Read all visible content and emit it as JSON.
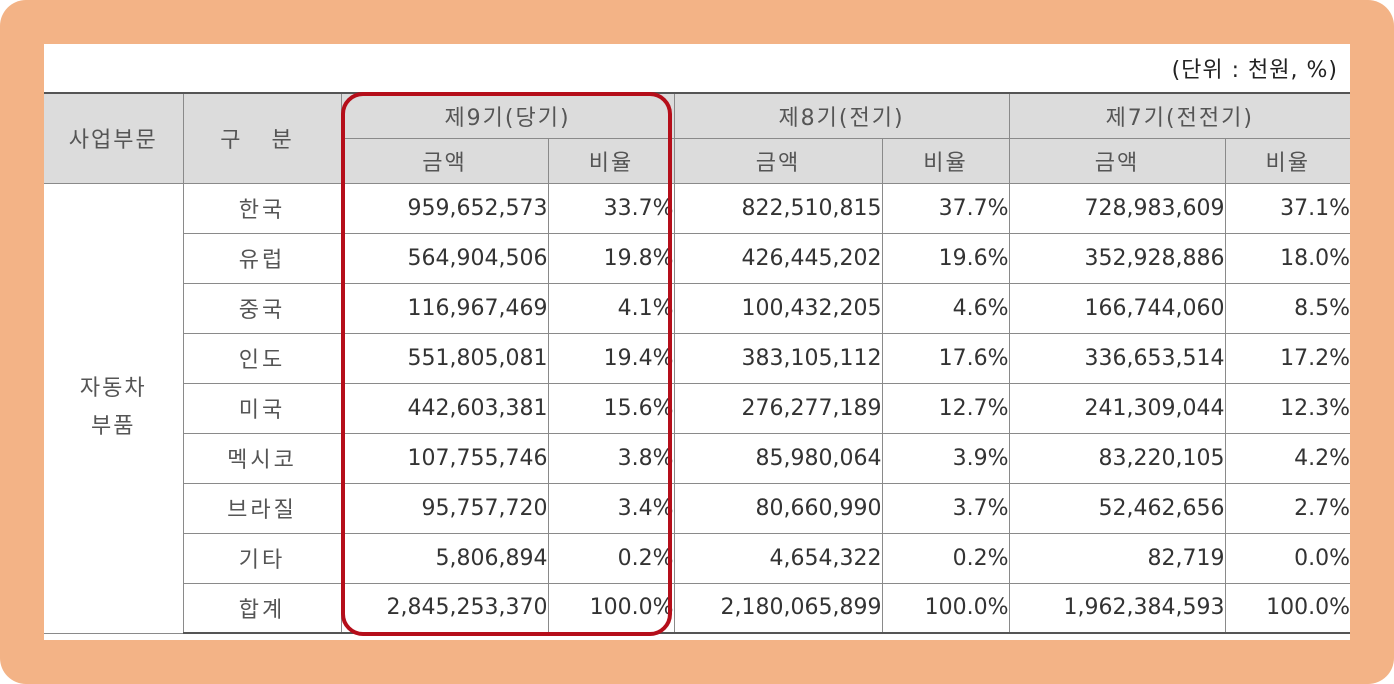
{
  "unit_note": "(단위 : 천원, %)",
  "headers": {
    "segment": "사업부문",
    "category": "구 분",
    "periods": [
      "제9기(당기)",
      "제8기(전기)",
      "제7기(전전기)"
    ],
    "amount": "금액",
    "ratio": "비율"
  },
  "segment_label": "자동차\n부품",
  "rows": [
    {
      "region": "한국",
      "p9_amount": "959,652,573",
      "p9_ratio": "33.7%",
      "p8_amount": "822,510,815",
      "p8_ratio": "37.7%",
      "p7_amount": "728,983,609",
      "p7_ratio": "37.1%"
    },
    {
      "region": "유럽",
      "p9_amount": "564,904,506",
      "p9_ratio": "19.8%",
      "p8_amount": "426,445,202",
      "p8_ratio": "19.6%",
      "p7_amount": "352,928,886",
      "p7_ratio": "18.0%"
    },
    {
      "region": "중국",
      "p9_amount": "116,967,469",
      "p9_ratio": "4.1%",
      "p8_amount": "100,432,205",
      "p8_ratio": "4.6%",
      "p7_amount": "166,744,060",
      "p7_ratio": "8.5%"
    },
    {
      "region": "인도",
      "p9_amount": "551,805,081",
      "p9_ratio": "19.4%",
      "p8_amount": "383,105,112",
      "p8_ratio": "17.6%",
      "p7_amount": "336,653,514",
      "p7_ratio": "17.2%"
    },
    {
      "region": "미국",
      "p9_amount": "442,603,381",
      "p9_ratio": "15.6%",
      "p8_amount": "276,277,189",
      "p8_ratio": "12.7%",
      "p7_amount": "241,309,044",
      "p7_ratio": "12.3%"
    },
    {
      "region": "멕시코",
      "p9_amount": "107,755,746",
      "p9_ratio": "3.8%",
      "p8_amount": "85,980,064",
      "p8_ratio": "3.9%",
      "p7_amount": "83,220,105",
      "p7_ratio": "4.2%"
    },
    {
      "region": "브라질",
      "p9_amount": "95,757,720",
      "p9_ratio": "3.4%",
      "p8_amount": "80,660,990",
      "p8_ratio": "3.7%",
      "p7_amount": "52,462,656",
      "p7_ratio": "2.7%"
    },
    {
      "region": "기타",
      "p9_amount": "5,806,894",
      "p9_ratio": "0.2%",
      "p8_amount": "4,654,322",
      "p8_ratio": "0.2%",
      "p7_amount": "82,719",
      "p7_ratio": "0.0%"
    },
    {
      "region": "합계",
      "p9_amount": "2,845,253,370",
      "p9_ratio": "100.0%",
      "p8_amount": "2,180,065,899",
      "p8_ratio": "100.0%",
      "p7_amount": "1,962,384,593",
      "p7_ratio": "100.0%"
    }
  ],
  "colors": {
    "frame": "#f3b386",
    "header_bg": "#dcdcdc",
    "highlight_border": "#b50e1a"
  }
}
